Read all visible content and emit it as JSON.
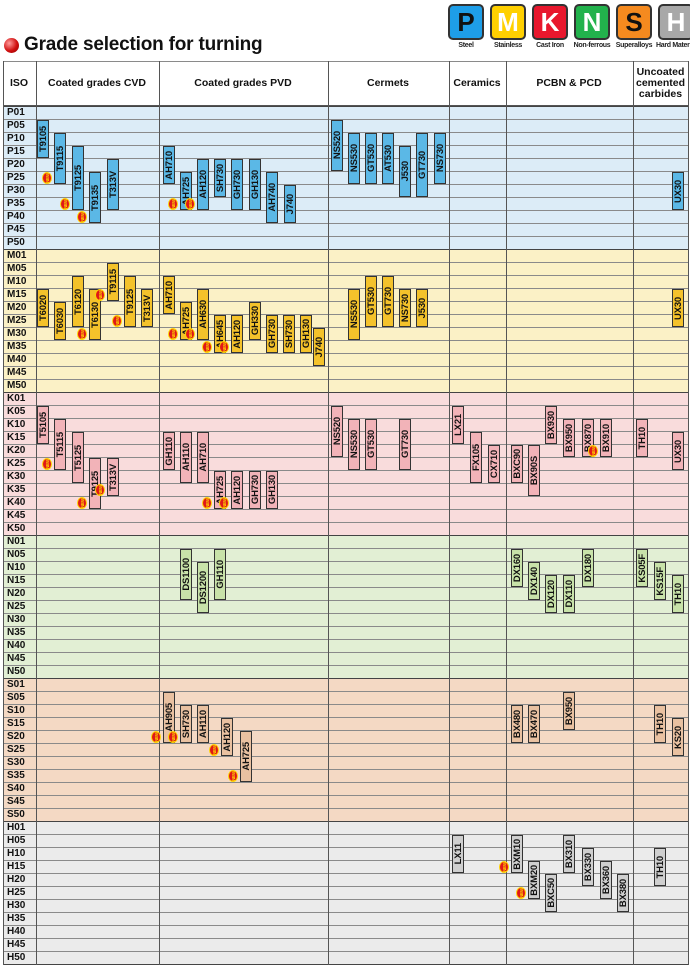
{
  "title": "Grade selection for turning",
  "legend": [
    {
      "letter": "P",
      "label": "Steel",
      "color": "#1e9ee8"
    },
    {
      "letter": "M",
      "label": "Stainless",
      "color": "#ffd000"
    },
    {
      "letter": "K",
      "label": "Cast Iron",
      "color": "#e8172d"
    },
    {
      "letter": "N",
      "label": "Non-ferrous",
      "color": "#22b24c"
    },
    {
      "letter": "S",
      "label": "Superalloys",
      "color": "#f58a1f"
    },
    {
      "letter": "H",
      "label": "Hard Materials",
      "color": "#a8a8a8"
    }
  ],
  "columns": {
    "iso": "ISO",
    "cvd": "Coated grades CVD",
    "pvd": "Coated grades PVD",
    "cermets": "Cermets",
    "ceramics": "Ceramics",
    "pcbn": "PCBN & PCD",
    "uncoated": "Uncoated cemented carbides"
  },
  "new_label": "NEW",
  "groups": [
    {
      "key": "P",
      "codes": [
        "P01",
        "P05",
        "P10",
        "P15",
        "P20",
        "P25",
        "P30",
        "P35",
        "P40",
        "P45",
        "P50"
      ],
      "band": "#dcecf7",
      "chip": "#5bb8e6"
    },
    {
      "key": "M",
      "codes": [
        "M01",
        "M05",
        "M10",
        "M15",
        "M20",
        "M25",
        "M30",
        "M35",
        "M40",
        "M45",
        "M50"
      ],
      "band": "#fbf1c6",
      "chip": "#f4c22b"
    },
    {
      "key": "K",
      "codes": [
        "K01",
        "K05",
        "K10",
        "K15",
        "K20",
        "K25",
        "K30",
        "K35",
        "K40",
        "K45",
        "K50"
      ],
      "band": "#f9dcdc",
      "chip": "#f2b3b8"
    },
    {
      "key": "N",
      "codes": [
        "N01",
        "N05",
        "N10",
        "N15",
        "N20",
        "N25",
        "N30",
        "N35",
        "N40",
        "N45",
        "N50"
      ],
      "band": "#e2efd4",
      "chip": "#c8e2a9"
    },
    {
      "key": "S",
      "codes": [
        "S01",
        "S05",
        "S10",
        "S15",
        "S20",
        "S25",
        "S30",
        "S35",
        "S40",
        "S45",
        "S50"
      ],
      "band": "#f4d9c4",
      "chip": "#e9c1a1"
    },
    {
      "key": "H",
      "codes": [
        "H01",
        "H05",
        "H10",
        "H15",
        "H20",
        "H25",
        "H30",
        "H35",
        "H40",
        "H45",
        "H50"
      ],
      "band": "#ebebeb",
      "chip": "#cfcfcf"
    }
  ],
  "grades": [
    {
      "g": "P",
      "grade": "T9105",
      "r": 1,
      "n": 3
    },
    {
      "g": "P",
      "grade": "T9115",
      "r": 2,
      "n": 4,
      "new": true
    },
    {
      "g": "P",
      "grade": "T9125",
      "r": 3,
      "n": 5,
      "new": true
    },
    {
      "g": "P",
      "grade": "T9135",
      "r": 5,
      "n": 4,
      "new": true
    },
    {
      "g": "P",
      "grade": "T313V",
      "r": 4,
      "n": 4
    },
    {
      "g": "P",
      "grade": "AH710",
      "r": 3,
      "n": 3
    },
    {
      "g": "P",
      "grade": "AH725",
      "r": 5,
      "n": 3,
      "new": true
    },
    {
      "g": "P",
      "grade": "AH120",
      "r": 4,
      "n": 4,
      "new": true
    },
    {
      "g": "P",
      "grade": "SH730",
      "r": 4,
      "n": 3
    },
    {
      "g": "P",
      "grade": "GH730",
      "r": 4,
      "n": 4
    },
    {
      "g": "P",
      "grade": "GH130",
      "r": 4,
      "n": 4
    },
    {
      "g": "P",
      "grade": "AH740",
      "r": 5,
      "n": 4
    },
    {
      "g": "P",
      "grade": "J740",
      "r": 6,
      "n": 3
    },
    {
      "g": "P",
      "grade": "NS520",
      "r": 1,
      "n": 4
    },
    {
      "g": "P",
      "grade": "NS530",
      "r": 2,
      "n": 4
    },
    {
      "g": "P",
      "grade": "GT530",
      "r": 2,
      "n": 4
    },
    {
      "g": "P",
      "grade": "AT530",
      "r": 2,
      "n": 4
    },
    {
      "g": "P",
      "grade": "J530",
      "r": 3,
      "n": 4
    },
    {
      "g": "P",
      "grade": "GT730",
      "r": 2,
      "n": 5
    },
    {
      "g": "P",
      "grade": "NS730",
      "r": 2,
      "n": 4
    },
    {
      "g": "P",
      "grade": "UX30",
      "r": 5,
      "n": 3
    },
    {
      "g": "M",
      "grade": "T6020",
      "r": 3,
      "n": 3
    },
    {
      "g": "M",
      "grade": "T6030",
      "r": 4,
      "n": 3
    },
    {
      "g": "M",
      "grade": "T6120",
      "r": 2,
      "n": 4
    },
    {
      "g": "M",
      "grade": "T6130",
      "r": 3,
      "n": 4,
      "new": true
    },
    {
      "g": "M",
      "grade": "T9115",
      "r": 1,
      "n": 3,
      "new": true
    },
    {
      "g": "M",
      "grade": "T9125",
      "r": 2,
      "n": 4,
      "new": true
    },
    {
      "g": "M",
      "grade": "T313V",
      "r": 3,
      "n": 3
    },
    {
      "g": "M",
      "grade": "AH710",
      "r": 2,
      "n": 3
    },
    {
      "g": "M",
      "grade": "AH725",
      "r": 4,
      "n": 3,
      "new": true
    },
    {
      "g": "M",
      "grade": "AH630",
      "r": 3,
      "n": 4,
      "new": true
    },
    {
      "g": "M",
      "grade": "AH645",
      "r": 5,
      "n": 3,
      "new": true
    },
    {
      "g": "M",
      "grade": "AH120",
      "r": 5,
      "n": 3,
      "new": true
    },
    {
      "g": "M",
      "grade": "GH330",
      "r": 4,
      "n": 3
    },
    {
      "g": "M",
      "grade": "GH730",
      "r": 5,
      "n": 3
    },
    {
      "g": "M",
      "grade": "SH730",
      "r": 5,
      "n": 3
    },
    {
      "g": "M",
      "grade": "GH130",
      "r": 5,
      "n": 3
    },
    {
      "g": "M",
      "grade": "J740",
      "r": 6,
      "n": 3
    },
    {
      "g": "M",
      "grade": "NS530",
      "r": 3,
      "n": 4
    },
    {
      "g": "M",
      "grade": "GT530",
      "r": 2,
      "n": 4
    },
    {
      "g": "M",
      "grade": "GT730",
      "r": 2,
      "n": 4
    },
    {
      "g": "M",
      "grade": "NS730",
      "r": 3,
      "n": 3
    },
    {
      "g": "M",
      "grade": "J530",
      "r": 3,
      "n": 3
    },
    {
      "g": "M",
      "grade": "UX30",
      "r": 3,
      "n": 3
    },
    {
      "g": "K",
      "grade": "T5105",
      "r": 1,
      "n": 3
    },
    {
      "g": "K",
      "grade": "T5115",
      "r": 2,
      "n": 4,
      "new": true
    },
    {
      "g": "K",
      "grade": "T5125",
      "r": 3,
      "n": 4
    },
    {
      "g": "K",
      "grade": "T9125",
      "r": 5,
      "n": 4,
      "new": true
    },
    {
      "g": "K",
      "grade": "T313V",
      "r": 5,
      "n": 3,
      "new": true
    },
    {
      "g": "K",
      "grade": "GH110",
      "r": 3,
      "n": 3
    },
    {
      "g": "K",
      "grade": "AH110",
      "r": 3,
      "n": 4
    },
    {
      "g": "K",
      "grade": "AH710",
      "r": 3,
      "n": 4
    },
    {
      "g": "K",
      "grade": "AH725",
      "r": 6,
      "n": 3,
      "new": true
    },
    {
      "g": "K",
      "grade": "AH120",
      "r": 6,
      "n": 3,
      "new": true
    },
    {
      "g": "K",
      "grade": "GH730",
      "r": 6,
      "n": 3
    },
    {
      "g": "K",
      "grade": "GH130",
      "r": 6,
      "n": 3
    },
    {
      "g": "K",
      "grade": "NS520",
      "r": 1,
      "n": 4
    },
    {
      "g": "K",
      "grade": "NS530",
      "r": 2,
      "n": 4
    },
    {
      "g": "K",
      "grade": "GT530",
      "r": 2,
      "n": 4
    },
    {
      "g": "K",
      "grade": "GT730",
      "r": 2,
      "n": 4
    },
    {
      "g": "K",
      "grade": "LX21",
      "r": 1,
      "n": 3
    },
    {
      "g": "K",
      "grade": "FX105",
      "r": 3,
      "n": 4
    },
    {
      "g": "K",
      "grade": "CX710",
      "r": 4,
      "n": 3
    },
    {
      "g": "K",
      "grade": "BXC90",
      "r": 4,
      "n": 3
    },
    {
      "g": "K",
      "grade": "BX90S",
      "r": 4,
      "n": 4
    },
    {
      "g": "K",
      "grade": "BX930",
      "r": 1,
      "n": 3
    },
    {
      "g": "K",
      "grade": "BX950",
      "r": 2,
      "n": 3
    },
    {
      "g": "K",
      "grade": "BX870",
      "r": 2,
      "n": 3
    },
    {
      "g": "K",
      "grade": "BX910",
      "r": 2,
      "n": 3,
      "new": true
    },
    {
      "g": "K",
      "grade": "TH10",
      "r": 2,
      "n": 3
    },
    {
      "g": "K",
      "grade": "UX30",
      "r": 3,
      "n": 3
    },
    {
      "g": "N",
      "grade": "DS1100",
      "r": 1,
      "n": 4
    },
    {
      "g": "N",
      "grade": "DS1200",
      "r": 2,
      "n": 4
    },
    {
      "g": "N",
      "grade": "GH110",
      "r": 1,
      "n": 4
    },
    {
      "g": "N",
      "grade": "DX160",
      "r": 1,
      "n": 3
    },
    {
      "g": "N",
      "grade": "DX140",
      "r": 2,
      "n": 3
    },
    {
      "g": "N",
      "grade": "DX120",
      "r": 3,
      "n": 3
    },
    {
      "g": "N",
      "grade": "DX110",
      "r": 3,
      "n": 3
    },
    {
      "g": "N",
      "grade": "DX180",
      "r": 1,
      "n": 3
    },
    {
      "g": "N",
      "grade": "KS05F",
      "r": 1,
      "n": 3
    },
    {
      "g": "N",
      "grade": "KS15F",
      "r": 2,
      "n": 3
    },
    {
      "g": "N",
      "grade": "TH10",
      "r": 3,
      "n": 3
    },
    {
      "g": "S",
      "grade": "AH905",
      "r": 1,
      "n": 4,
      "new": true
    },
    {
      "g": "S",
      "grade": "SH730",
      "r": 2,
      "n": 3,
      "new": true
    },
    {
      "g": "S",
      "grade": "AH110",
      "r": 2,
      "n": 3
    },
    {
      "g": "S",
      "grade": "AH120",
      "r": 3,
      "n": 3,
      "new": true
    },
    {
      "g": "S",
      "grade": "AH725",
      "r": 4,
      "n": 4,
      "new": true
    },
    {
      "g": "S",
      "grade": "BX480",
      "r": 2,
      "n": 3
    },
    {
      "g": "S",
      "grade": "BX470",
      "r": 2,
      "n": 3
    },
    {
      "g": "S",
      "grade": "BX950",
      "r": 1,
      "n": 3
    },
    {
      "g": "S",
      "grade": "TH10",
      "r": 2,
      "n": 3
    },
    {
      "g": "S",
      "grade": "KS20",
      "r": 3,
      "n": 3
    },
    {
      "g": "H",
      "grade": "LX11",
      "r": 1,
      "n": 3
    },
    {
      "g": "H",
      "grade": "BXM10",
      "r": 1,
      "n": 3,
      "new": true
    },
    {
      "g": "H",
      "grade": "BXM20",
      "r": 3,
      "n": 3,
      "new": true
    },
    {
      "g": "H",
      "grade": "BXC50",
      "r": 4,
      "n": 3
    },
    {
      "g": "H",
      "grade": "BX310",
      "r": 1,
      "n": 3
    },
    {
      "g": "H",
      "grade": "BX330",
      "r": 2,
      "n": 3
    },
    {
      "g": "H",
      "grade": "BX360",
      "r": 3,
      "n": 3
    },
    {
      "g": "H",
      "grade": "BX380",
      "r": 4,
      "n": 3
    },
    {
      "g": "H",
      "grade": "TH10",
      "r": 2,
      "n": 3
    }
  ]
}
